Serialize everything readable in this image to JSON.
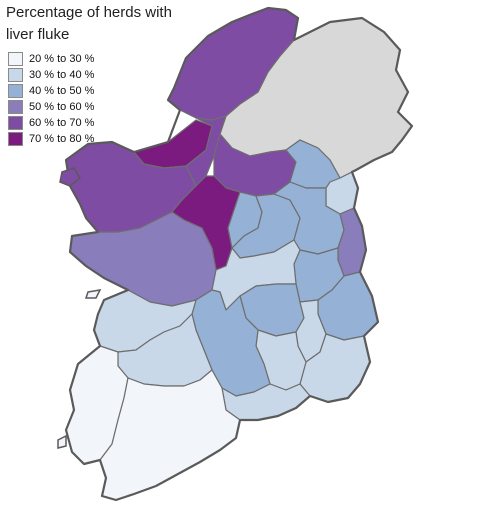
{
  "title_line1": "Percentage of herds with",
  "title_line2": "liver fluke",
  "legend": [
    {
      "label": "20 % to 30 %",
      "color": "#f2f6fb"
    },
    {
      "label": "30 % to 40 %",
      "color": "#c9d8e9"
    },
    {
      "label": "40 % to 50 %",
      "color": "#95b1d5"
    },
    {
      "label": "50 % to 60 %",
      "color": "#8a7dbc"
    },
    {
      "label": "60 % to 70 %",
      "color": "#7f4ca4"
    },
    {
      "label": "70 % to 80 %",
      "color": "#7b1a7f"
    }
  ],
  "northern_ireland_color": "#d8d8d8",
  "regions": [
    {
      "name": "donegal",
      "class": 4
    },
    {
      "name": "mayo",
      "class": 4
    },
    {
      "name": "sligo",
      "class": 5
    },
    {
      "name": "roscommon",
      "class": 5
    },
    {
      "name": "leitrim",
      "class": 4
    },
    {
      "name": "cavan",
      "class": 4
    },
    {
      "name": "galway",
      "class": 3
    },
    {
      "name": "monaghan",
      "class": 2
    },
    {
      "name": "louth",
      "class": 1
    },
    {
      "name": "meath",
      "class": 2
    },
    {
      "name": "dublin",
      "class": 3
    },
    {
      "name": "westmeath",
      "class": 2
    },
    {
      "name": "longford",
      "class": 2
    },
    {
      "name": "offaly",
      "class": 1
    },
    {
      "name": "kildare",
      "class": 2
    },
    {
      "name": "wicklow",
      "class": 2
    },
    {
      "name": "laois",
      "class": 2
    },
    {
      "name": "carlow",
      "class": 1
    },
    {
      "name": "wexford",
      "class": 1
    },
    {
      "name": "kilkenny",
      "class": 1
    },
    {
      "name": "tipperary",
      "class": 2
    },
    {
      "name": "clare",
      "class": 1
    },
    {
      "name": "limerick",
      "class": 1
    },
    {
      "name": "waterford",
      "class": 1
    },
    {
      "name": "cork",
      "class": 0
    },
    {
      "name": "kerry",
      "class": 0
    }
  ]
}
